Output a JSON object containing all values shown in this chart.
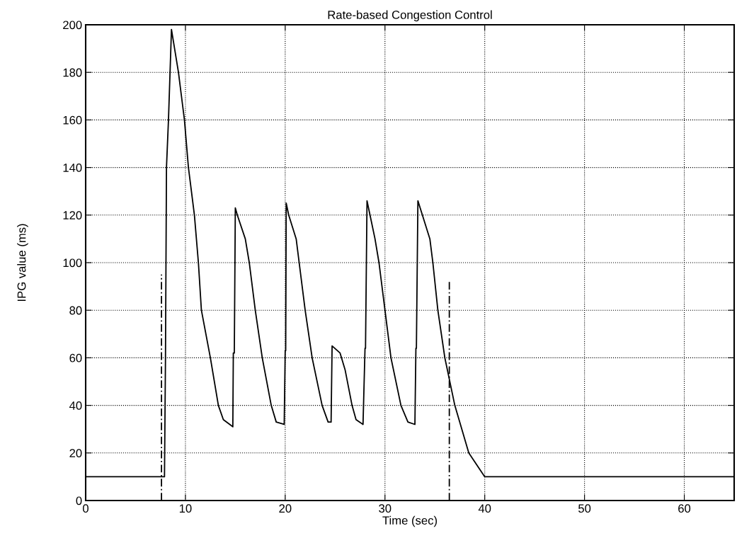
{
  "chart_data": {
    "type": "line",
    "title": "Rate-based Congestion Control",
    "xlabel": "Time (sec)",
    "ylabel": "IPG value (ms)",
    "xlim": [
      0,
      65
    ],
    "xticks": [
      0,
      10,
      20,
      30,
      40,
      50,
      60
    ],
    "ylim": [
      0,
      200
    ],
    "yticks": [
      0,
      20,
      40,
      60,
      80,
      100,
      120,
      140,
      160,
      180,
      200
    ],
    "grid": true,
    "marker": "none",
    "series": [
      {
        "color": "#000000",
        "line_style": "solid",
        "x": [
          0,
          7.9,
          8.0,
          8.1,
          8.3,
          8.6,
          9.3,
          9.9,
          10.3,
          10.9,
          11.3,
          11.6,
          12.5,
          13.3,
          13.8,
          14.75,
          14.8,
          14.9,
          15.0,
          15.2,
          16.0,
          16.4,
          17.0,
          17.7,
          18.6,
          19.1,
          19.9,
          20.0,
          20.05,
          20.1,
          20.35,
          21.1,
          21.4,
          22.0,
          22.7,
          23.7,
          24.3,
          24.6,
          24.7,
          25.5,
          26.0,
          26.7,
          27.1,
          27.8,
          28.0,
          28.05,
          28.2,
          28.5,
          29.0,
          29.4,
          30.0,
          30.6,
          31.6,
          32.3,
          33.0,
          33.1,
          33.15,
          33.3,
          33.75,
          34.5,
          34.8,
          35.3,
          36.0,
          37.0,
          38.4,
          40.0,
          65
        ],
        "values": [
          10,
          10,
          60,
          140,
          160,
          198,
          180,
          160,
          140,
          120,
          100,
          80,
          60,
          40,
          34,
          31,
          62,
          62,
          123,
          120,
          110,
          100,
          80,
          60,
          40,
          33,
          32,
          63,
          63,
          125,
          120,
          110,
          100,
          80,
          60,
          40,
          33,
          33,
          65,
          62,
          55,
          40,
          34,
          32,
          64,
          64,
          126,
          120,
          110,
          100,
          80,
          60,
          40,
          33,
          32,
          64,
          64,
          126,
          120,
          110,
          100,
          80,
          60,
          40,
          20,
          10,
          10
        ]
      },
      {
        "color": "#000000",
        "line_style": "dashed",
        "x": [
          7.6,
          7.6,
          null,
          36.45,
          36.45
        ],
        "values": [
          0,
          95,
          null,
          0,
          92
        ]
      }
    ]
  }
}
